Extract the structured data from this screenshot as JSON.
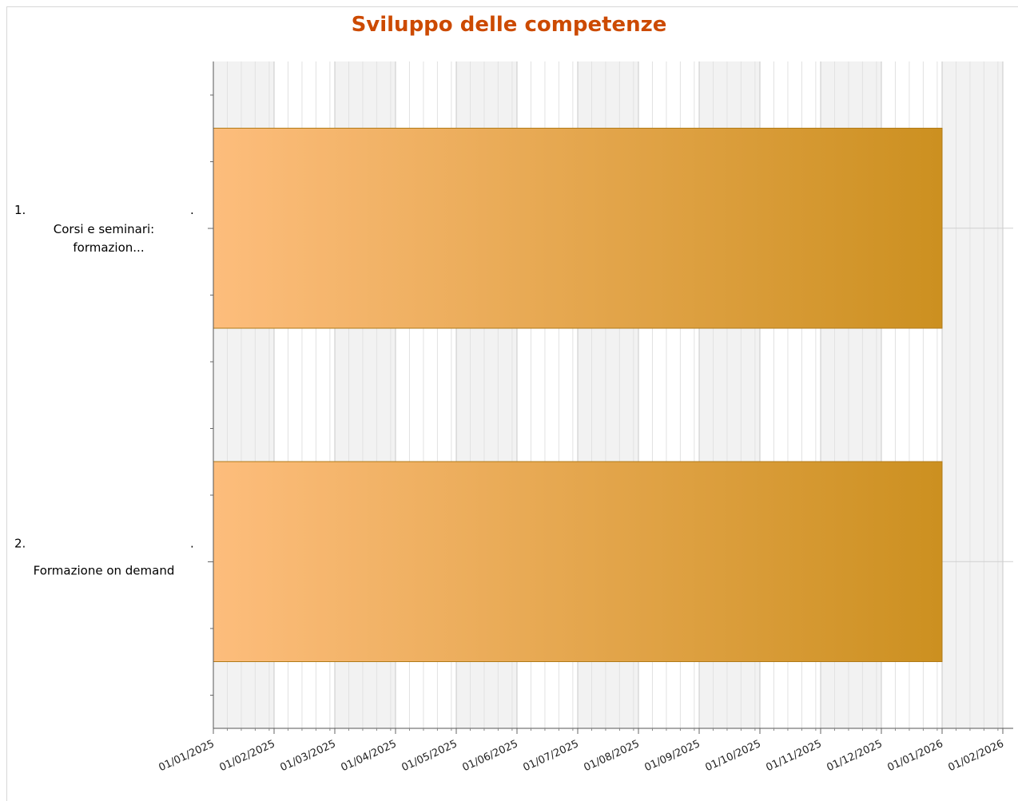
{
  "chart_data": {
    "type": "bar",
    "orientation": "horizontal",
    "title": "Sviluppo delle competenze",
    "xlabel": "",
    "ylabel": "",
    "xlim": [
      "2025-01-01",
      "2026-02-15"
    ],
    "grid": true,
    "categories": [
      {
        "number": "1.",
        "label": "Corsi e seminari:",
        "label2": "formazion..."
      },
      {
        "number": "2.",
        "label": "Formazione on demand",
        "label2": ""
      }
    ],
    "bars": [
      {
        "category": "1.",
        "start": "2025-01-01",
        "end": "2026-01-01"
      },
      {
        "category": "2.",
        "start": "2025-01-01",
        "end": "2026-01-01"
      }
    ],
    "x_tick_labels": [
      "01/01/2025",
      "01/02/2025",
      "01/03/2025",
      "01/04/2025",
      "01/05/2025",
      "01/06/2025",
      "01/07/2025",
      "01/08/2025",
      "01/09/2025",
      "01/10/2025",
      "01/11/2025",
      "01/12/2025",
      "01/01/2026",
      "01/02/2026"
    ],
    "colors": {
      "bar_start": "#fdbd7c",
      "bar_end": "#cc9020",
      "bar_border": "#b07a18",
      "title": "#cc4a00"
    }
  }
}
